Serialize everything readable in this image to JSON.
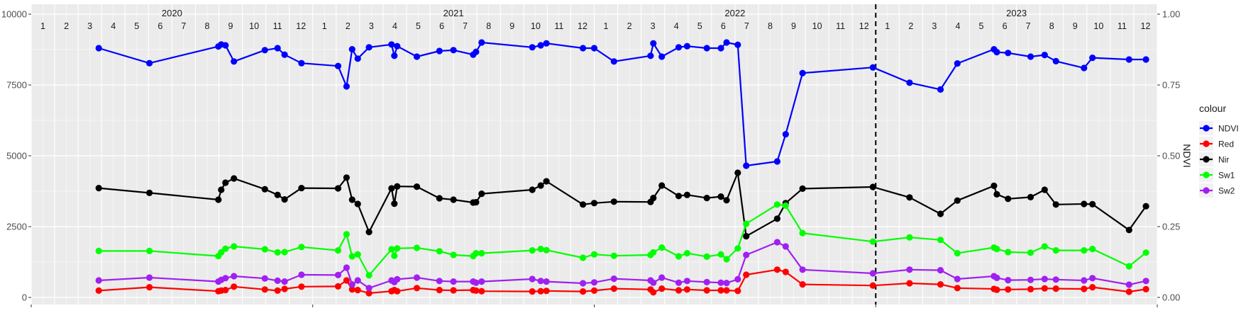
{
  "chart_data": {
    "type": "line",
    "years": [
      "2020",
      "2021",
      "2022",
      "2023"
    ],
    "months": [
      "1",
      "2",
      "3",
      "4",
      "5",
      "6",
      "7",
      "8",
      "9",
      "10",
      "11",
      "12"
    ],
    "x_range": [
      2020.0,
      2024.0
    ],
    "ylim_left": [
      0,
      10000
    ],
    "yticks_left": [
      0,
      2500,
      5000,
      7500,
      10000
    ],
    "ytick_labels_left": [
      "0",
      "2500",
      "5000",
      "7500",
      "10000"
    ],
    "ylim_right": [
      0.0,
      1.0
    ],
    "yticks_right": [
      0.0,
      0.25,
      0.5,
      0.75,
      1.0
    ],
    "ytick_labels_right": [
      "0.00",
      "0.25",
      "0.50",
      "0.75",
      "1.00"
    ],
    "ylabel_right": "NDVI",
    "vline_x": 2023.0,
    "grid": true,
    "legend": {
      "title": "colour",
      "position": "right"
    },
    "series": [
      {
        "name": "NDVI",
        "color": "#0000FF",
        "axis": "right",
        "x": [
          2020.24,
          2020.42,
          2020.665,
          2020.675,
          2020.69,
          2020.72,
          2020.83,
          2020.875,
          2020.9,
          2020.96,
          2021.09,
          2021.12,
          2021.14,
          2021.16,
          2021.2,
          2021.28,
          2021.29,
          2021.3,
          2021.37,
          2021.45,
          2021.5,
          2021.57,
          2021.58,
          2021.6,
          2021.78,
          2021.81,
          2021.83,
          2021.96,
          2022.0,
          2022.07,
          2022.2,
          2022.21,
          2022.24,
          2022.3,
          2022.33,
          2022.4,
          2022.45,
          2022.47,
          2022.51,
          2022.54,
          2022.65,
          2022.68,
          2022.74,
          2022.99,
          2023.12,
          2023.23,
          2023.29,
          2023.42,
          2023.43,
          2023.47,
          2023.55,
          2023.6,
          2023.64,
          2023.74,
          2023.77,
          2023.9,
          2023.96
        ],
        "y": [
          0.88,
          0.827,
          0.886,
          0.893,
          0.89,
          0.833,
          0.873,
          0.88,
          0.857,
          0.827,
          0.817,
          0.745,
          0.876,
          0.843,
          0.883,
          0.893,
          0.853,
          0.887,
          0.85,
          0.87,
          0.873,
          0.857,
          0.867,
          0.9,
          0.883,
          0.89,
          0.897,
          0.88,
          0.88,
          0.833,
          0.853,
          0.897,
          0.85,
          0.883,
          0.887,
          0.88,
          0.88,
          0.9,
          0.892,
          0.465,
          0.48,
          0.576,
          0.792,
          0.812,
          0.758,
          0.734,
          0.826,
          0.876,
          0.866,
          0.863,
          0.85,
          0.856,
          0.834,
          0.81,
          0.846,
          0.84,
          0.84
        ]
      },
      {
        "name": "Red",
        "color": "#FF0000",
        "axis": "left",
        "x": [
          2020.24,
          2020.42,
          2020.665,
          2020.675,
          2020.69,
          2020.72,
          2020.83,
          2020.875,
          2020.9,
          2020.96,
          2021.09,
          2021.12,
          2021.14,
          2021.16,
          2021.2,
          2021.28,
          2021.29,
          2021.3,
          2021.37,
          2021.45,
          2021.5,
          2021.57,
          2021.58,
          2021.6,
          2021.78,
          2021.81,
          2021.83,
          2021.96,
          2022.0,
          2022.07,
          2022.2,
          2022.21,
          2022.24,
          2022.3,
          2022.33,
          2022.4,
          2022.45,
          2022.47,
          2022.51,
          2022.54,
          2022.65,
          2022.68,
          2022.74,
          2022.99,
          2023.12,
          2023.23,
          2023.29,
          2023.42,
          2023.43,
          2023.47,
          2023.55,
          2023.6,
          2023.64,
          2023.74,
          2023.77,
          2023.9,
          2023.96
        ],
        "y": [
          240,
          360,
          220,
          240,
          260,
          380,
          280,
          240,
          300,
          380,
          390,
          600,
          280,
          260,
          150,
          220,
          260,
          220,
          330,
          260,
          250,
          260,
          240,
          220,
          210,
          220,
          230,
          210,
          240,
          310,
          280,
          180,
          310,
          250,
          280,
          250,
          250,
          250,
          230,
          800,
          980,
          900,
          460,
          420,
          500,
          460,
          330,
          300,
          270,
          280,
          290,
          320,
          310,
          300,
          360,
          200,
          290
        ]
      },
      {
        "name": "Nir",
        "color": "#000000",
        "axis": "left",
        "x": [
          2020.24,
          2020.42,
          2020.665,
          2020.675,
          2020.69,
          2020.72,
          2020.83,
          2020.875,
          2020.9,
          2020.96,
          2021.09,
          2021.12,
          2021.14,
          2021.16,
          2021.2,
          2021.28,
          2021.29,
          2021.3,
          2021.37,
          2021.45,
          2021.5,
          2021.57,
          2021.58,
          2021.6,
          2021.78,
          2021.81,
          2021.83,
          2021.96,
          2022.0,
          2022.07,
          2022.2,
          2022.21,
          2022.24,
          2022.3,
          2022.33,
          2022.4,
          2022.45,
          2022.47,
          2022.51,
          2022.54,
          2022.65,
          2022.68,
          2022.74,
          2022.99,
          2023.12,
          2023.23,
          2023.29,
          2023.42,
          2023.43,
          2023.47,
          2023.55,
          2023.6,
          2023.64,
          2023.74,
          2023.77,
          2023.9,
          2023.96
        ],
        "y": [
          3860,
          3690,
          3450,
          3800,
          4050,
          4200,
          3820,
          3620,
          3460,
          3860,
          3850,
          4230,
          3450,
          3300,
          2310,
          3850,
          3310,
          3920,
          3910,
          3500,
          3450,
          3350,
          3360,
          3660,
          3800,
          3950,
          4100,
          3280,
          3330,
          3380,
          3370,
          3510,
          3950,
          3580,
          3620,
          3510,
          3560,
          3430,
          4400,
          2160,
          2780,
          3330,
          3840,
          3900,
          3530,
          2950,
          3420,
          3940,
          3640,
          3480,
          3540,
          3800,
          3280,
          3300,
          3290,
          2380,
          3220
        ]
      },
      {
        "name": "Sw1",
        "color": "#00FF00",
        "axis": "left",
        "x": [
          2020.24,
          2020.42,
          2020.665,
          2020.675,
          2020.69,
          2020.72,
          2020.83,
          2020.875,
          2020.9,
          2020.96,
          2021.09,
          2021.12,
          2021.14,
          2021.16,
          2021.2,
          2021.28,
          2021.29,
          2021.3,
          2021.37,
          2021.45,
          2021.5,
          2021.57,
          2021.58,
          2021.6,
          2021.78,
          2021.81,
          2021.83,
          2021.96,
          2022.0,
          2022.07,
          2022.2,
          2022.21,
          2022.24,
          2022.3,
          2022.33,
          2022.4,
          2022.45,
          2022.47,
          2022.51,
          2022.54,
          2022.65,
          2022.68,
          2022.74,
          2022.99,
          2023.12,
          2023.23,
          2023.29,
          2023.42,
          2023.43,
          2023.47,
          2023.55,
          2023.6,
          2023.64,
          2023.74,
          2023.77,
          2023.9,
          2023.96
        ],
        "y": [
          1640,
          1640,
          1460,
          1590,
          1720,
          1800,
          1700,
          1590,
          1600,
          1780,
          1660,
          2230,
          1450,
          1520,
          780,
          1700,
          1470,
          1730,
          1750,
          1630,
          1500,
          1460,
          1560,
          1560,
          1660,
          1710,
          1670,
          1400,
          1520,
          1470,
          1500,
          1590,
          1760,
          1450,
          1560,
          1440,
          1520,
          1350,
          1730,
          2600,
          3280,
          3240,
          2270,
          1970,
          2120,
          2030,
          1560,
          1760,
          1710,
          1600,
          1580,
          1800,
          1660,
          1660,
          1710,
          1100,
          1580
        ]
      },
      {
        "name": "Sw2",
        "color": "#A020F0",
        "axis": "left",
        "x": [
          2020.24,
          2020.42,
          2020.665,
          2020.675,
          2020.69,
          2020.72,
          2020.83,
          2020.875,
          2020.9,
          2020.96,
          2021.09,
          2021.12,
          2021.14,
          2021.16,
          2021.2,
          2021.28,
          2021.29,
          2021.3,
          2021.37,
          2021.45,
          2021.5,
          2021.57,
          2021.58,
          2021.6,
          2021.78,
          2021.81,
          2021.83,
          2021.96,
          2022.0,
          2022.07,
          2022.2,
          2022.21,
          2022.24,
          2022.3,
          2022.33,
          2022.4,
          2022.45,
          2022.47,
          2022.51,
          2022.54,
          2022.65,
          2022.68,
          2022.74,
          2022.99,
          2023.12,
          2023.23,
          2023.29,
          2023.42,
          2023.43,
          2023.47,
          2023.55,
          2023.6,
          2023.64,
          2023.74,
          2023.77,
          2023.9,
          2023.96
        ],
        "y": [
          600,
          700,
          560,
          620,
          680,
          750,
          670,
          590,
          560,
          800,
          790,
          1050,
          460,
          600,
          330,
          600,
          540,
          640,
          700,
          580,
          560,
          560,
          520,
          560,
          650,
          580,
          560,
          500,
          530,
          660,
          600,
          520,
          700,
          520,
          580,
          540,
          520,
          510,
          640,
          1500,
          1950,
          1800,
          980,
          850,
          980,
          960,
          650,
          750,
          690,
          610,
          620,
          650,
          630,
          600,
          680,
          450,
          580
        ]
      }
    ]
  }
}
